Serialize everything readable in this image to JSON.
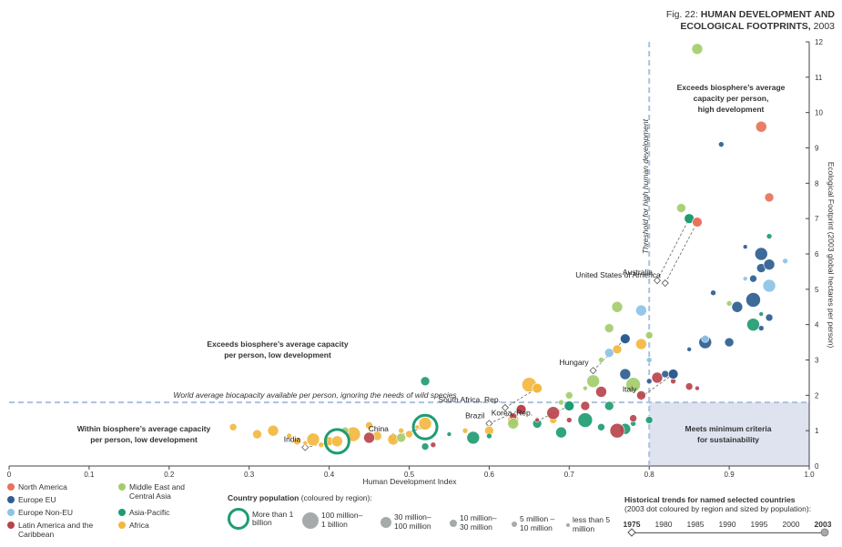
{
  "figure": {
    "title_prefix": "Fig. 22:",
    "title_bold_line1": "HUMAN DEVELOPMENT AND",
    "title_bold_line2": "ECOLOGICAL FOOTPRINTS,",
    "title_year": "2003"
  },
  "regions": [
    {
      "name": "North America",
      "color": "#e8725b"
    },
    {
      "name": "Europe EU",
      "color": "#2e5d91"
    },
    {
      "name": "Europe Non-EU",
      "color": "#8cc3e6"
    },
    {
      "name": "Latin America and the Caribbean",
      "color": "#b8444c"
    },
    {
      "name": "Middle East and Central Asia",
      "color": "#a3cd6b"
    },
    {
      "name": "Asia-Pacific",
      "color": "#1e9c72"
    },
    {
      "name": "Africa",
      "color": "#f2b93f"
    }
  ],
  "population_legend": {
    "title": "Country population",
    "subtitle": "(coloured by region):",
    "items": [
      {
        "label": "More than 1 billion",
        "style": "ring"
      },
      {
        "label": "100 million– 1 billion",
        "style": "dot"
      },
      {
        "label": "30 million– 100 million",
        "style": "dot"
      },
      {
        "label": "10 million– 30 million",
        "style": "dot"
      },
      {
        "label": "5 million – 10 million",
        "style": "dot"
      },
      {
        "label": "less than 5 million",
        "style": "dot"
      }
    ]
  },
  "historical_legend": {
    "title": "Historical trends for named selected countries",
    "subtitle": "(2003 dot coloured by region and sized by population):",
    "years": [
      "1975",
      "1980",
      "1985",
      "1990",
      "1995",
      "2000",
      "2003"
    ]
  },
  "annotations": {
    "quad_high": [
      "Exceeds biosphere’s average",
      "capacity per person,",
      "high development"
    ],
    "quad_low": [
      "Exceeds biosphere’s average capacity",
      "per person, low development"
    ],
    "quad_within": [
      "Within biosphere’s average capacity",
      "per person, low development"
    ],
    "quad_meets": [
      "Meets minimum criteria",
      "for sustainability"
    ],
    "biocapacity_line": "World average biocapacity available per person, ignoring the needs of wild species",
    "threshold_line": "Threshold for high human development"
  },
  "chart_data": {
    "type": "scatter",
    "xlabel": "Human Development Index",
    "ylabel": "Ecological Footprint (2003 global hectares per person)",
    "xlim": [
      0,
      1.0
    ],
    "ylim": [
      0,
      12
    ],
    "x_ticks": [
      "0",
      "0.1",
      "0.2",
      "0.3",
      "0.4",
      "0.5",
      "0.6",
      "0.7",
      "0.8",
      "0.9",
      "1.0"
    ],
    "y_ticks": [
      "0",
      "1",
      "2",
      "3",
      "4",
      "5",
      "6",
      "7",
      "8",
      "9",
      "10",
      "11",
      "12"
    ],
    "reference_lines": {
      "biocapacity_y": 1.8,
      "hdi_threshold_x": 0.8
    },
    "named_countries": [
      {
        "name": "India",
        "x": 0.41,
        "y": 0.7,
        "region": "Asia-Pacific"
      },
      {
        "name": "China",
        "x": 0.52,
        "y": 1.1,
        "region": "Asia-Pacific"
      },
      {
        "name": "Brazil",
        "x": 0.64,
        "y": 1.6,
        "region": "Latin America and the Caribbean"
      },
      {
        "name": "South Africa, Rep.",
        "x": 0.66,
        "y": 2.2,
        "region": "Africa"
      },
      {
        "name": "Korea, Rep.",
        "x": 0.7,
        "y": 1.7,
        "region": "Asia-Pacific"
      },
      {
        "name": "Hungary",
        "x": 0.77,
        "y": 3.6,
        "region": "Europe EU"
      },
      {
        "name": "Italy",
        "x": 0.83,
        "y": 2.6,
        "region": "Europe EU"
      },
      {
        "name": "Australia",
        "x": 0.85,
        "y": 7.0,
        "region": "Asia-Pacific"
      },
      {
        "name": "United States of America",
        "x": 0.86,
        "y": 6.9,
        "region": "North America"
      }
    ],
    "series": [
      {
        "name": "Africa",
        "points": [
          [
            0.28,
            1.1
          ],
          [
            0.31,
            0.9
          ],
          [
            0.33,
            1.0
          ],
          [
            0.35,
            0.85
          ],
          [
            0.36,
            0.7
          ],
          [
            0.37,
            0.65
          ],
          [
            0.38,
            0.75
          ],
          [
            0.39,
            0.6
          ],
          [
            0.4,
            0.7
          ],
          [
            0.41,
            0.7
          ],
          [
            0.43,
            0.9
          ],
          [
            0.45,
            1.15
          ],
          [
            0.46,
            0.85
          ],
          [
            0.48,
            0.75
          ],
          [
            0.49,
            1.0
          ],
          [
            0.5,
            0.9
          ],
          [
            0.51,
            1.1
          ],
          [
            0.52,
            1.2
          ],
          [
            0.57,
            1.0
          ],
          [
            0.6,
            1.0
          ],
          [
            0.63,
            1.3
          ],
          [
            0.65,
            2.3
          ],
          [
            0.68,
            1.3
          ],
          [
            0.76,
            3.3
          ],
          [
            0.79,
            3.45
          ]
        ]
      },
      {
        "name": "Asia-Pacific",
        "points": [
          [
            0.52,
            0.55
          ],
          [
            0.55,
            0.9
          ],
          [
            0.58,
            0.8
          ],
          [
            0.6,
            0.85
          ],
          [
            0.66,
            1.2
          ],
          [
            0.69,
            0.95
          ],
          [
            0.72,
            1.3
          ],
          [
            0.74,
            1.1
          ],
          [
            0.75,
            1.7
          ],
          [
            0.77,
            1.05
          ],
          [
            0.78,
            1.2
          ],
          [
            0.8,
            1.3
          ],
          [
            0.94,
            4.3
          ],
          [
            0.93,
            4.0
          ],
          [
            0.95,
            6.5
          ],
          [
            0.52,
            2.4
          ]
        ]
      },
      {
        "name": "Latin America and the Caribbean",
        "points": [
          [
            0.45,
            0.8
          ],
          [
            0.53,
            0.6
          ],
          [
            0.63,
            1.4
          ],
          [
            0.66,
            1.3
          ],
          [
            0.68,
            1.5
          ],
          [
            0.7,
            1.3
          ],
          [
            0.72,
            1.7
          ],
          [
            0.74,
            2.1
          ],
          [
            0.76,
            1.0
          ],
          [
            0.78,
            1.35
          ],
          [
            0.79,
            2.0
          ],
          [
            0.81,
            2.5
          ],
          [
            0.83,
            2.4
          ],
          [
            0.85,
            2.25
          ],
          [
            0.86,
            2.2
          ]
        ]
      },
      {
        "name": "Middle East and Central Asia",
        "points": [
          [
            0.42,
            1.0
          ],
          [
            0.49,
            0.8
          ],
          [
            0.63,
            1.2
          ],
          [
            0.69,
            1.8
          ],
          [
            0.7,
            2.0
          ],
          [
            0.72,
            2.2
          ],
          [
            0.73,
            2.4
          ],
          [
            0.74,
            3.0
          ],
          [
            0.75,
            3.9
          ],
          [
            0.76,
            4.5
          ],
          [
            0.78,
            2.3
          ],
          [
            0.8,
            3.7
          ],
          [
            0.84,
            7.3
          ],
          [
            0.86,
            11.8
          ],
          [
            0.9,
            4.6
          ]
        ]
      },
      {
        "name": "Europe EU",
        "points": [
          [
            0.77,
            2.6
          ],
          [
            0.8,
            2.4
          ],
          [
            0.82,
            2.6
          ],
          [
            0.85,
            3.3
          ],
          [
            0.87,
            3.5
          ],
          [
            0.88,
            4.9
          ],
          [
            0.9,
            3.5
          ],
          [
            0.91,
            4.5
          ],
          [
            0.93,
            4.7
          ],
          [
            0.93,
            5.3
          ],
          [
            0.94,
            5.6
          ],
          [
            0.95,
            5.7
          ],
          [
            0.94,
            3.9
          ],
          [
            0.95,
            4.2
          ],
          [
            0.92,
            6.2
          ],
          [
            0.94,
            6.0
          ],
          [
            0.89,
            9.1
          ]
        ]
      },
      {
        "name": "Europe Non-EU",
        "points": [
          [
            0.75,
            3.2
          ],
          [
            0.79,
            4.4
          ],
          [
            0.8,
            3.0
          ],
          [
            0.87,
            3.6
          ],
          [
            0.92,
            5.3
          ],
          [
            0.95,
            5.1
          ],
          [
            0.97,
            5.8
          ]
        ]
      },
      {
        "name": "North America",
        "points": [
          [
            0.95,
            7.6
          ],
          [
            0.94,
            9.6
          ]
        ]
      }
    ]
  }
}
